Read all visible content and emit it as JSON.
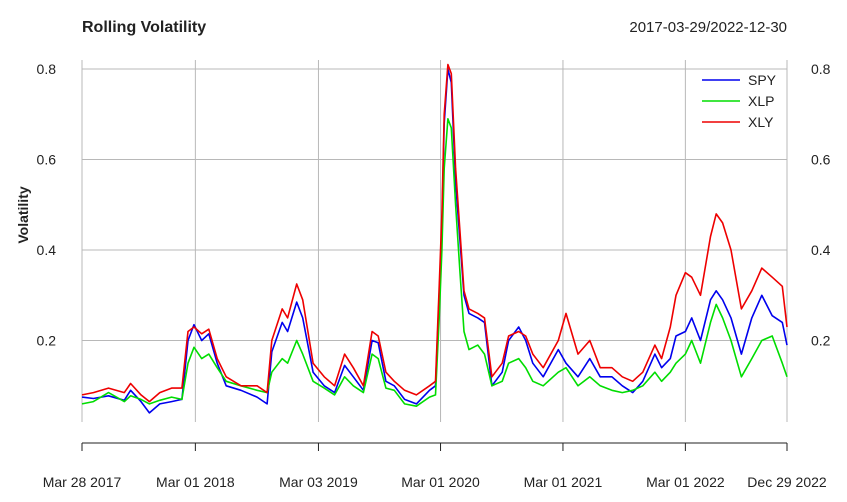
{
  "chart_data": {
    "type": "line",
    "title": "Rolling Volatility",
    "date_range": "2017-03-29/2022-12-30",
    "ylabel": "Volatility",
    "ylim": [
      0.02,
      0.82
    ],
    "yticks": [
      {
        "value": 0.2,
        "label": "0.2"
      },
      {
        "value": 0.4,
        "label": "0.4"
      },
      {
        "value": 0.6,
        "label": "0.6"
      },
      {
        "value": 0.8,
        "label": "0.8"
      }
    ],
    "xticks": [
      {
        "date": "2017-03-28",
        "label": "Mar 28 2017"
      },
      {
        "date": "2018-03-01",
        "label": "Mar 01 2018"
      },
      {
        "date": "2019-03-03",
        "label": "Mar 03 2019"
      },
      {
        "date": "2020-03-01",
        "label": "Mar 01 2020"
      },
      {
        "date": "2021-03-01",
        "label": "Mar 01 2021"
      },
      {
        "date": "2022-03-01",
        "label": "Mar 01 2022"
      },
      {
        "date": "2022-12-29",
        "label": "Dec 29 2022"
      }
    ],
    "legend_position": "top-right",
    "grid": true,
    "series": [
      {
        "name": "SPY",
        "color": "#0000ee",
        "points": [
          [
            "2017-03-28",
            0.075
          ],
          [
            "2017-05-01",
            0.072
          ],
          [
            "2017-06-15",
            0.078
          ],
          [
            "2017-08-01",
            0.068
          ],
          [
            "2017-08-20",
            0.09
          ],
          [
            "2017-09-20",
            0.065
          ],
          [
            "2017-10-15",
            0.04
          ],
          [
            "2017-11-15",
            0.06
          ],
          [
            "2017-12-20",
            0.065
          ],
          [
            "2018-01-20",
            0.07
          ],
          [
            "2018-02-07",
            0.2
          ],
          [
            "2018-02-25",
            0.235
          ],
          [
            "2018-03-20",
            0.2
          ],
          [
            "2018-04-10",
            0.215
          ],
          [
            "2018-05-05",
            0.15
          ],
          [
            "2018-06-01",
            0.1
          ],
          [
            "2018-07-15",
            0.09
          ],
          [
            "2018-09-01",
            0.075
          ],
          [
            "2018-10-01",
            0.06
          ],
          [
            "2018-10-15",
            0.175
          ],
          [
            "2018-11-15",
            0.24
          ],
          [
            "2018-12-01",
            0.22
          ],
          [
            "2018-12-28",
            0.285
          ],
          [
            "2019-01-15",
            0.25
          ],
          [
            "2019-02-15",
            0.13
          ],
          [
            "2019-03-20",
            0.1
          ],
          [
            "2019-04-20",
            0.085
          ],
          [
            "2019-05-20",
            0.145
          ],
          [
            "2019-06-15",
            0.12
          ],
          [
            "2019-07-15",
            0.09
          ],
          [
            "2019-08-10",
            0.2
          ],
          [
            "2019-08-28",
            0.195
          ],
          [
            "2019-09-20",
            0.11
          ],
          [
            "2019-10-15",
            0.1
          ],
          [
            "2019-11-15",
            0.07
          ],
          [
            "2019-12-20",
            0.06
          ],
          [
            "2020-01-28",
            0.09
          ],
          [
            "2020-02-15",
            0.1
          ],
          [
            "2020-02-26",
            0.3
          ],
          [
            "2020-03-05",
            0.45
          ],
          [
            "2020-03-12",
            0.68
          ],
          [
            "2020-03-23",
            0.8
          ],
          [
            "2020-04-02",
            0.77
          ],
          [
            "2020-04-15",
            0.55
          ],
          [
            "2020-04-28",
            0.42
          ],
          [
            "2020-05-10",
            0.3
          ],
          [
            "2020-05-25",
            0.26
          ],
          [
            "2020-06-20",
            0.25
          ],
          [
            "2020-07-10",
            0.24
          ],
          [
            "2020-08-01",
            0.1
          ],
          [
            "2020-09-01",
            0.13
          ],
          [
            "2020-09-20",
            0.2
          ],
          [
            "2020-10-20",
            0.23
          ],
          [
            "2020-11-10",
            0.2
          ],
          [
            "2020-12-01",
            0.15
          ],
          [
            "2021-01-01",
            0.12
          ],
          [
            "2021-02-15",
            0.18
          ],
          [
            "2021-03-10",
            0.15
          ],
          [
            "2021-04-15",
            0.12
          ],
          [
            "2021-05-20",
            0.16
          ],
          [
            "2021-06-20",
            0.12
          ],
          [
            "2021-07-25",
            0.12
          ],
          [
            "2021-08-25",
            0.1
          ],
          [
            "2021-09-25",
            0.085
          ],
          [
            "2021-10-25",
            0.11
          ],
          [
            "2021-11-30",
            0.17
          ],
          [
            "2021-12-20",
            0.14
          ],
          [
            "2022-01-15",
            0.16
          ],
          [
            "2022-02-01",
            0.21
          ],
          [
            "2022-03-01",
            0.22
          ],
          [
            "2022-03-20",
            0.25
          ],
          [
            "2022-04-15",
            0.2
          ],
          [
            "2022-05-15",
            0.29
          ],
          [
            "2022-06-01",
            0.31
          ],
          [
            "2022-06-20",
            0.29
          ],
          [
            "2022-07-15",
            0.25
          ],
          [
            "2022-08-15",
            0.17
          ],
          [
            "2022-09-15",
            0.25
          ],
          [
            "2022-10-15",
            0.3
          ],
          [
            "2022-11-15",
            0.255
          ],
          [
            "2022-12-15",
            0.24
          ],
          [
            "2022-12-29",
            0.19
          ]
        ]
      },
      {
        "name": "XLP",
        "color": "#00dd00",
        "points": [
          [
            "2017-03-28",
            0.06
          ],
          [
            "2017-05-01",
            0.065
          ],
          [
            "2017-06-15",
            0.085
          ],
          [
            "2017-08-01",
            0.065
          ],
          [
            "2017-08-20",
            0.078
          ],
          [
            "2017-09-20",
            0.07
          ],
          [
            "2017-10-15",
            0.06
          ],
          [
            "2017-11-15",
            0.068
          ],
          [
            "2017-12-20",
            0.075
          ],
          [
            "2018-01-20",
            0.07
          ],
          [
            "2018-02-07",
            0.15
          ],
          [
            "2018-02-25",
            0.185
          ],
          [
            "2018-03-20",
            0.16
          ],
          [
            "2018-04-10",
            0.17
          ],
          [
            "2018-05-05",
            0.14
          ],
          [
            "2018-06-01",
            0.11
          ],
          [
            "2018-07-15",
            0.1
          ],
          [
            "2018-09-01",
            0.09
          ],
          [
            "2018-10-01",
            0.085
          ],
          [
            "2018-10-15",
            0.13
          ],
          [
            "2018-11-15",
            0.16
          ],
          [
            "2018-12-01",
            0.15
          ],
          [
            "2018-12-28",
            0.2
          ],
          [
            "2019-01-15",
            0.17
          ],
          [
            "2019-02-15",
            0.11
          ],
          [
            "2019-03-20",
            0.095
          ],
          [
            "2019-04-20",
            0.08
          ],
          [
            "2019-05-20",
            0.12
          ],
          [
            "2019-06-15",
            0.1
          ],
          [
            "2019-07-15",
            0.085
          ],
          [
            "2019-08-10",
            0.17
          ],
          [
            "2019-08-28",
            0.16
          ],
          [
            "2019-09-20",
            0.095
          ],
          [
            "2019-10-15",
            0.09
          ],
          [
            "2019-11-15",
            0.06
          ],
          [
            "2019-12-20",
            0.055
          ],
          [
            "2020-01-28",
            0.075
          ],
          [
            "2020-02-15",
            0.08
          ],
          [
            "2020-02-26",
            0.25
          ],
          [
            "2020-03-05",
            0.4
          ],
          [
            "2020-03-12",
            0.58
          ],
          [
            "2020-03-23",
            0.69
          ],
          [
            "2020-04-02",
            0.67
          ],
          [
            "2020-04-15",
            0.5
          ],
          [
            "2020-04-28",
            0.35
          ],
          [
            "2020-05-10",
            0.22
          ],
          [
            "2020-05-25",
            0.18
          ],
          [
            "2020-06-20",
            0.19
          ],
          [
            "2020-07-10",
            0.17
          ],
          [
            "2020-08-01",
            0.1
          ],
          [
            "2020-09-01",
            0.11
          ],
          [
            "2020-09-20",
            0.15
          ],
          [
            "2020-10-20",
            0.16
          ],
          [
            "2020-11-10",
            0.14
          ],
          [
            "2020-12-01",
            0.11
          ],
          [
            "2021-01-01",
            0.1
          ],
          [
            "2021-02-15",
            0.13
          ],
          [
            "2021-03-10",
            0.14
          ],
          [
            "2021-04-15",
            0.1
          ],
          [
            "2021-05-20",
            0.12
          ],
          [
            "2021-06-20",
            0.1
          ],
          [
            "2021-07-25",
            0.09
          ],
          [
            "2021-08-25",
            0.085
          ],
          [
            "2021-09-25",
            0.09
          ],
          [
            "2021-10-25",
            0.1
          ],
          [
            "2021-11-30",
            0.13
          ],
          [
            "2021-12-20",
            0.11
          ],
          [
            "2022-01-15",
            0.13
          ],
          [
            "2022-02-01",
            0.15
          ],
          [
            "2022-03-01",
            0.17
          ],
          [
            "2022-03-20",
            0.2
          ],
          [
            "2022-04-15",
            0.15
          ],
          [
            "2022-05-15",
            0.24
          ],
          [
            "2022-06-01",
            0.28
          ],
          [
            "2022-06-20",
            0.25
          ],
          [
            "2022-07-15",
            0.2
          ],
          [
            "2022-08-15",
            0.12
          ],
          [
            "2022-09-15",
            0.16
          ],
          [
            "2022-10-15",
            0.2
          ],
          [
            "2022-11-15",
            0.21
          ],
          [
            "2022-12-15",
            0.15
          ],
          [
            "2022-12-29",
            0.12
          ]
        ]
      },
      {
        "name": "XLY",
        "color": "#ee0000",
        "points": [
          [
            "2017-03-28",
            0.08
          ],
          [
            "2017-05-01",
            0.085
          ],
          [
            "2017-06-15",
            0.095
          ],
          [
            "2017-08-01",
            0.085
          ],
          [
            "2017-08-20",
            0.105
          ],
          [
            "2017-09-20",
            0.08
          ],
          [
            "2017-10-15",
            0.065
          ],
          [
            "2017-11-15",
            0.085
          ],
          [
            "2017-12-20",
            0.095
          ],
          [
            "2018-01-20",
            0.095
          ],
          [
            "2018-02-07",
            0.22
          ],
          [
            "2018-02-25",
            0.23
          ],
          [
            "2018-03-20",
            0.215
          ],
          [
            "2018-04-10",
            0.225
          ],
          [
            "2018-05-05",
            0.16
          ],
          [
            "2018-06-01",
            0.12
          ],
          [
            "2018-07-15",
            0.1
          ],
          [
            "2018-09-01",
            0.1
          ],
          [
            "2018-10-01",
            0.085
          ],
          [
            "2018-10-15",
            0.2
          ],
          [
            "2018-11-15",
            0.27
          ],
          [
            "2018-12-01",
            0.25
          ],
          [
            "2018-12-28",
            0.325
          ],
          [
            "2019-01-15",
            0.29
          ],
          [
            "2019-02-15",
            0.15
          ],
          [
            "2019-03-20",
            0.12
          ],
          [
            "2019-04-20",
            0.1
          ],
          [
            "2019-05-20",
            0.17
          ],
          [
            "2019-06-15",
            0.14
          ],
          [
            "2019-07-15",
            0.1
          ],
          [
            "2019-08-10",
            0.22
          ],
          [
            "2019-08-28",
            0.21
          ],
          [
            "2019-09-20",
            0.13
          ],
          [
            "2019-10-15",
            0.11
          ],
          [
            "2019-11-15",
            0.09
          ],
          [
            "2019-12-20",
            0.08
          ],
          [
            "2020-01-28",
            0.1
          ],
          [
            "2020-02-15",
            0.11
          ],
          [
            "2020-02-26",
            0.32
          ],
          [
            "2020-03-05",
            0.48
          ],
          [
            "2020-03-12",
            0.7
          ],
          [
            "2020-03-23",
            0.81
          ],
          [
            "2020-04-02",
            0.79
          ],
          [
            "2020-04-15",
            0.58
          ],
          [
            "2020-04-28",
            0.44
          ],
          [
            "2020-05-10",
            0.31
          ],
          [
            "2020-05-25",
            0.27
          ],
          [
            "2020-06-20",
            0.26
          ],
          [
            "2020-07-10",
            0.25
          ],
          [
            "2020-08-01",
            0.12
          ],
          [
            "2020-09-01",
            0.15
          ],
          [
            "2020-09-20",
            0.21
          ],
          [
            "2020-10-20",
            0.22
          ],
          [
            "2020-11-10",
            0.21
          ],
          [
            "2020-12-01",
            0.17
          ],
          [
            "2021-01-01",
            0.14
          ],
          [
            "2021-02-15",
            0.2
          ],
          [
            "2021-03-10",
            0.26
          ],
          [
            "2021-04-15",
            0.17
          ],
          [
            "2021-05-20",
            0.2
          ],
          [
            "2021-06-20",
            0.14
          ],
          [
            "2021-07-25",
            0.14
          ],
          [
            "2021-08-25",
            0.12
          ],
          [
            "2021-09-25",
            0.11
          ],
          [
            "2021-10-25",
            0.13
          ],
          [
            "2021-11-30",
            0.19
          ],
          [
            "2021-12-20",
            0.16
          ],
          [
            "2022-01-15",
            0.23
          ],
          [
            "2022-02-01",
            0.3
          ],
          [
            "2022-03-01",
            0.35
          ],
          [
            "2022-03-20",
            0.34
          ],
          [
            "2022-04-15",
            0.3
          ],
          [
            "2022-05-15",
            0.43
          ],
          [
            "2022-06-01",
            0.48
          ],
          [
            "2022-06-20",
            0.46
          ],
          [
            "2022-07-15",
            0.4
          ],
          [
            "2022-08-15",
            0.27
          ],
          [
            "2022-09-15",
            0.31
          ],
          [
            "2022-10-15",
            0.36
          ],
          [
            "2022-11-15",
            0.34
          ],
          [
            "2022-12-15",
            0.32
          ],
          [
            "2022-12-29",
            0.23
          ]
        ]
      }
    ]
  }
}
